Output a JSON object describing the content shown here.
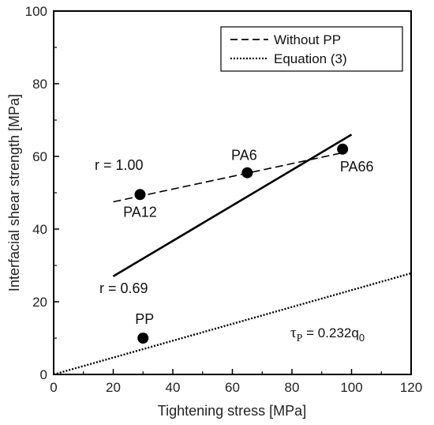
{
  "chart_data": {
    "type": "scatter",
    "xlabel": "Tightening stress [MPa]",
    "ylabel": "Interfacial shear strength [MPa]",
    "xlim": [
      0,
      120
    ],
    "ylim": [
      0,
      100
    ],
    "xticks": [
      0,
      20,
      40,
      60,
      80,
      100,
      120
    ],
    "yticks": [
      0,
      20,
      40,
      60,
      80,
      100
    ],
    "grid": false,
    "legend_position": "top-right",
    "points": [
      {
        "label": "PA12",
        "x": 29,
        "y": 49.5
      },
      {
        "label": "PA6",
        "x": 65,
        "y": 55.5
      },
      {
        "label": "PA66",
        "x": 97,
        "y": 62
      },
      {
        "label": "PP",
        "x": 30,
        "y": 10
      }
    ],
    "lines": [
      {
        "name": "Without PP",
        "style": "dashed",
        "x": [
          20,
          97
        ],
        "y": [
          47.5,
          61
        ]
      },
      {
        "name": "",
        "style": "solid",
        "x": [
          20,
          100
        ],
        "y": [
          27,
          66
        ]
      },
      {
        "name": "Equation (3)",
        "style": "dotted",
        "x": [
          0,
          120
        ],
        "y": [
          0,
          27.84
        ]
      }
    ],
    "legend": [
      "Without PP",
      "Equation (3)"
    ],
    "annotations": {
      "r_dashed": "r = 1.00",
      "r_solid": "r = 0.69",
      "equation_symbol": "τ",
      "equation_subscript": "P",
      "equation_rest": " = 0.232q",
      "equation_tail_subscript": "0"
    }
  }
}
